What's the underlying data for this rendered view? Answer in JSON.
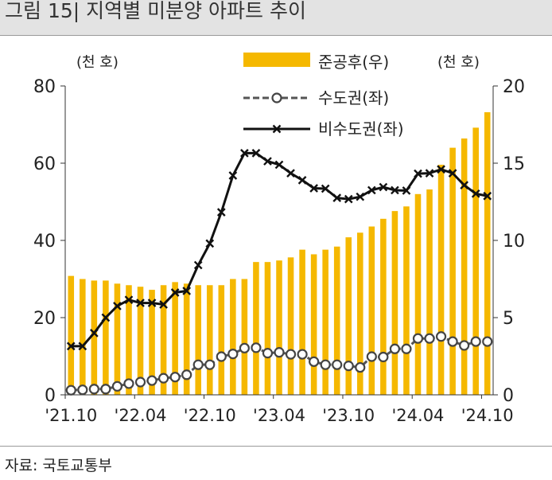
{
  "title": "그림 15| 지역별 미분양 아파트 추이",
  "source": "자료: 국토교통부",
  "chart_data": {
    "type": "bar+line",
    "left_unit": "(천 호)",
    "right_unit": "(천 호)",
    "left_ylim": [
      0,
      80
    ],
    "left_ticks": [
      "0",
      "20",
      "40",
      "60",
      "80"
    ],
    "right_ylim": [
      0,
      20
    ],
    "right_ticks": [
      "0",
      "5",
      "10",
      "15",
      "20"
    ],
    "x_tick_labels": [
      "'21.10",
      "'22.04",
      "'22.10",
      "'23.04",
      "'23.10",
      "'24.04",
      "'24.10"
    ],
    "x": [
      "'21.10",
      "'21.11",
      "'21.12",
      "'22.01",
      "'22.02",
      "'22.03",
      "'22.04",
      "'22.05",
      "'22.06",
      "'22.07",
      "'22.08",
      "'22.09",
      "'22.10",
      "'22.11",
      "'22.12",
      "'23.01",
      "'23.02",
      "'23.03",
      "'23.04",
      "'23.05",
      "'23.06",
      "'23.07",
      "'23.08",
      "'23.09",
      "'23.10",
      "'23.11",
      "'23.12",
      "'24.01",
      "'24.02",
      "'24.03",
      "'24.04",
      "'24.05",
      "'24.06",
      "'24.07",
      "'24.08",
      "'24.09",
      "'24.10"
    ],
    "series": [
      {
        "name": "준공후(우)",
        "axis": "right",
        "type": "bar",
        "color": "#f5b800",
        "values": [
          7.7,
          7.5,
          7.4,
          7.4,
          7.2,
          7.1,
          7.0,
          6.8,
          7.1,
          7.3,
          7.2,
          7.1,
          7.1,
          7.1,
          7.5,
          7.5,
          8.6,
          8.6,
          8.7,
          8.9,
          9.4,
          9.1,
          9.4,
          9.6,
          10.2,
          10.5,
          10.9,
          11.4,
          11.9,
          12.2,
          13.0,
          13.3,
          14.9,
          16.0,
          16.6,
          17.3,
          18.3
        ]
      },
      {
        "name": "수도권(좌)",
        "axis": "left",
        "type": "line",
        "marker": "circle",
        "dash": true,
        "color": "#555555",
        "values": [
          1.2,
          1.3,
          1.5,
          1.5,
          2.2,
          2.9,
          3.3,
          3.7,
          4.3,
          4.6,
          5.2,
          7.8,
          7.8,
          9.9,
          10.6,
          12.1,
          12.2,
          10.8,
          11.0,
          10.5,
          10.5,
          8.6,
          7.8,
          7.8,
          7.5,
          7.1,
          9.9,
          9.8,
          11.9,
          11.9,
          14.6,
          14.6,
          15.1,
          13.8,
          12.8,
          13.8,
          13.8
        ]
      },
      {
        "name": "비수도권(좌)",
        "axis": "left",
        "type": "line",
        "marker": "x",
        "color": "#111111",
        "values": [
          12.6,
          12.6,
          16.0,
          20.0,
          23.0,
          24.6,
          23.8,
          23.8,
          23.4,
          26.5,
          26.9,
          33.6,
          39.2,
          47.3,
          56.8,
          62.6,
          62.6,
          60.5,
          59.6,
          57.4,
          55.6,
          53.5,
          53.4,
          51.0,
          50.7,
          51.3,
          53.0,
          53.8,
          53.0,
          52.9,
          57.3,
          57.4,
          58.4,
          57.4,
          54.3,
          52.1,
          51.5
        ]
      }
    ]
  }
}
